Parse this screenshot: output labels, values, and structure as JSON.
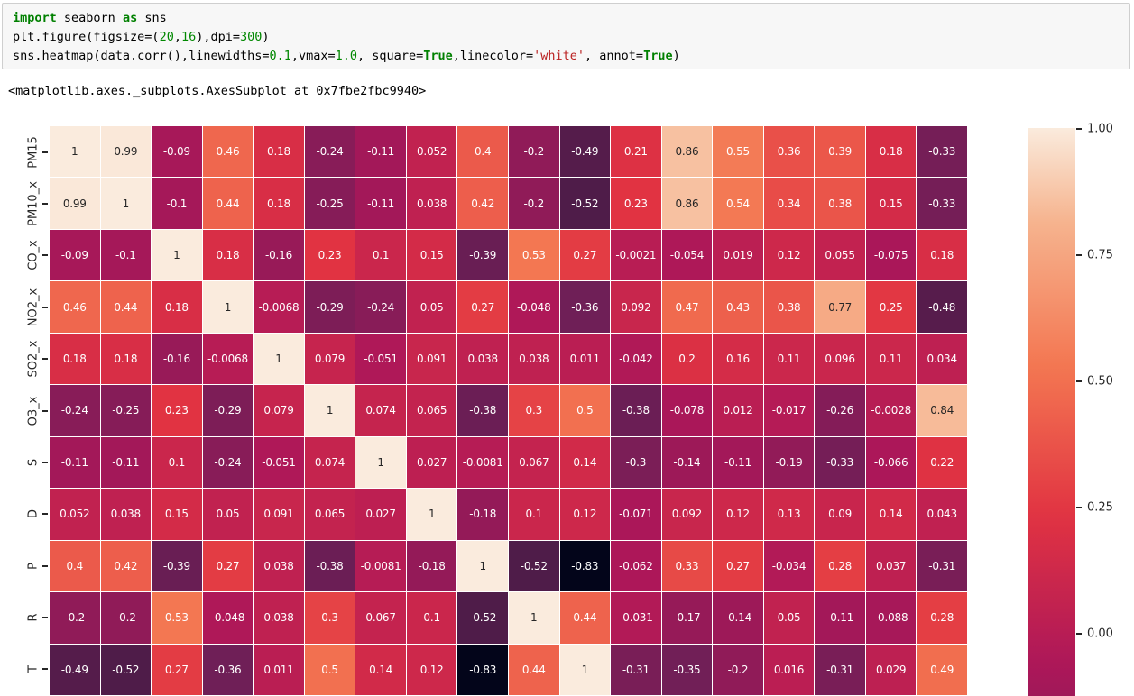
{
  "notebook": {
    "code_cell": {
      "lines": [
        [
          {
            "t": "import",
            "c": "kw"
          },
          {
            "t": " seaborn ",
            "c": ""
          },
          {
            "t": "as",
            "c": "kw"
          },
          {
            "t": " sns",
            "c": ""
          }
        ],
        [
          {
            "t": "plt.figure(figsize=(",
            "c": ""
          },
          {
            "t": "20",
            "c": "num"
          },
          {
            "t": ",",
            "c": ""
          },
          {
            "t": "16",
            "c": "num"
          },
          {
            "t": "),dpi=",
            "c": ""
          },
          {
            "t": "300",
            "c": "num"
          },
          {
            "t": ")",
            "c": ""
          }
        ],
        [
          {
            "t": "sns.heatmap(data.corr(),linewidths=",
            "c": ""
          },
          {
            "t": "0.1",
            "c": "num"
          },
          {
            "t": ",vmax=",
            "c": ""
          },
          {
            "t": "1.0",
            "c": "num"
          },
          {
            "t": ", square=",
            "c": ""
          },
          {
            "t": "True",
            "c": "kw"
          },
          {
            "t": ",linecolor=",
            "c": ""
          },
          {
            "t": "'white'",
            "c": "str"
          },
          {
            "t": ", annot=",
            "c": ""
          },
          {
            "t": "True",
            "c": "kw"
          },
          {
            "t": ")",
            "c": ""
          }
        ]
      ]
    },
    "output_text": "<matplotlib.axes._subplots.AxesSubplot at 0x7fbe2fbc9940>"
  },
  "chart_data": {
    "type": "heatmap",
    "title": "",
    "description": "Correlation matrix heatmap (seaborn rocket colormap, annot=True); 11 of 18 rows visible, figure cropped at bottom and colorbar cropped below 0.00",
    "row_labels": [
      "PM15",
      "PM10_x",
      "CO_x",
      "NO2_x",
      "SO2_x",
      "O3_x",
      "S",
      "D",
      "P",
      "R",
      "T"
    ],
    "col_labels_visible": false,
    "values": [
      [
        "1",
        "0.99",
        "-0.09",
        "0.46",
        "0.18",
        "-0.24",
        "-0.11",
        "0.052",
        "0.4",
        "-0.2",
        "-0.49",
        "0.21",
        "0.86",
        "0.55",
        "0.36",
        "0.39",
        "0.18",
        "-0.33"
      ],
      [
        "0.99",
        "1",
        "-0.1",
        "0.44",
        "0.18",
        "-0.25",
        "-0.11",
        "0.038",
        "0.42",
        "-0.2",
        "-0.52",
        "0.23",
        "0.86",
        "0.54",
        "0.34",
        "0.38",
        "0.15",
        "-0.33"
      ],
      [
        "-0.09",
        "-0.1",
        "1",
        "0.18",
        "-0.16",
        "0.23",
        "0.1",
        "0.15",
        "-0.39",
        "0.53",
        "0.27",
        "-0.0021",
        "-0.054",
        "0.019",
        "0.12",
        "0.055",
        "-0.075",
        "0.18"
      ],
      [
        "0.46",
        "0.44",
        "0.18",
        "1",
        "-0.0068",
        "-0.29",
        "-0.24",
        "0.05",
        "0.27",
        "-0.048",
        "-0.36",
        "0.092",
        "0.47",
        "0.43",
        "0.38",
        "0.77",
        "0.25",
        "-0.48"
      ],
      [
        "0.18",
        "0.18",
        "-0.16",
        "-0.0068",
        "1",
        "0.079",
        "-0.051",
        "0.091",
        "0.038",
        "0.038",
        "0.011",
        "-0.042",
        "0.2",
        "0.16",
        "0.11",
        "0.096",
        "0.11",
        "0.034"
      ],
      [
        "-0.24",
        "-0.25",
        "0.23",
        "-0.29",
        "0.079",
        "1",
        "0.074",
        "0.065",
        "-0.38",
        "0.3",
        "0.5",
        "-0.38",
        "-0.078",
        "0.012",
        "-0.017",
        "-0.26",
        "-0.0028",
        "0.84"
      ],
      [
        "-0.11",
        "-0.11",
        "0.1",
        "-0.24",
        "-0.051",
        "0.074",
        "1",
        "0.027",
        "-0.0081",
        "0.067",
        "0.14",
        "-0.3",
        "-0.14",
        "-0.11",
        "-0.19",
        "-0.33",
        "-0.066",
        "0.22"
      ],
      [
        "0.052",
        "0.038",
        "0.15",
        "0.05",
        "0.091",
        "0.065",
        "0.027",
        "1",
        "-0.18",
        "0.1",
        "0.12",
        "-0.071",
        "0.092",
        "0.12",
        "0.13",
        "0.09",
        "0.14",
        "0.043"
      ],
      [
        "0.4",
        "0.42",
        "-0.39",
        "0.27",
        "0.038",
        "-0.38",
        "-0.0081",
        "-0.18",
        "1",
        "-0.52",
        "-0.83",
        "-0.062",
        "0.33",
        "0.27",
        "-0.034",
        "0.28",
        "0.037",
        "-0.31"
      ],
      [
        "-0.2",
        "-0.2",
        "0.53",
        "-0.048",
        "0.038",
        "0.3",
        "0.067",
        "0.1",
        "-0.52",
        "1",
        "0.44",
        "-0.031",
        "-0.17",
        "-0.14",
        "0.05",
        "-0.11",
        "-0.088",
        "0.28"
      ],
      [
        "-0.49",
        "-0.52",
        "0.27",
        "-0.36",
        "0.011",
        "0.5",
        "0.14",
        "0.12",
        "-0.83",
        "0.44",
        "1",
        "-0.31",
        "-0.35",
        "-0.2",
        "0.016",
        "-0.31",
        "0.029",
        "0.49"
      ]
    ],
    "vmin": -0.83,
    "vmax": 1.0,
    "colormap": "rocket",
    "colormap_stops": [
      {
        "t": 0.0,
        "rgb": [
          3,
          5,
          26
        ]
      },
      {
        "t": 0.1,
        "rgb": [
          53,
          25,
          62
        ]
      },
      {
        "t": 0.26,
        "rgb": [
          112,
          31,
          87
        ]
      },
      {
        "t": 0.42,
        "rgb": [
          173,
          23,
          89
        ]
      },
      {
        "t": 0.58,
        "rgb": [
          225,
          51,
          66
        ]
      },
      {
        "t": 0.74,
        "rgb": [
          243,
          118,
          81
        ]
      },
      {
        "t": 0.9,
        "rgb": [
          246,
          180,
          143
        ]
      },
      {
        "t": 1.0,
        "rgb": [
          250,
          235,
          221
        ]
      }
    ],
    "gridline_color": "#ffffff",
    "annotation_text_light": "#ffffff",
    "annotation_text_dark": "#262626",
    "colorbar": {
      "ticks": [
        "1.00",
        "0.75",
        "0.50",
        "0.25",
        "0.00"
      ],
      "tick_values": [
        1.0,
        0.75,
        0.5,
        0.25,
        0.0
      ]
    },
    "legend_position": "right-colorbar",
    "grid": false
  }
}
